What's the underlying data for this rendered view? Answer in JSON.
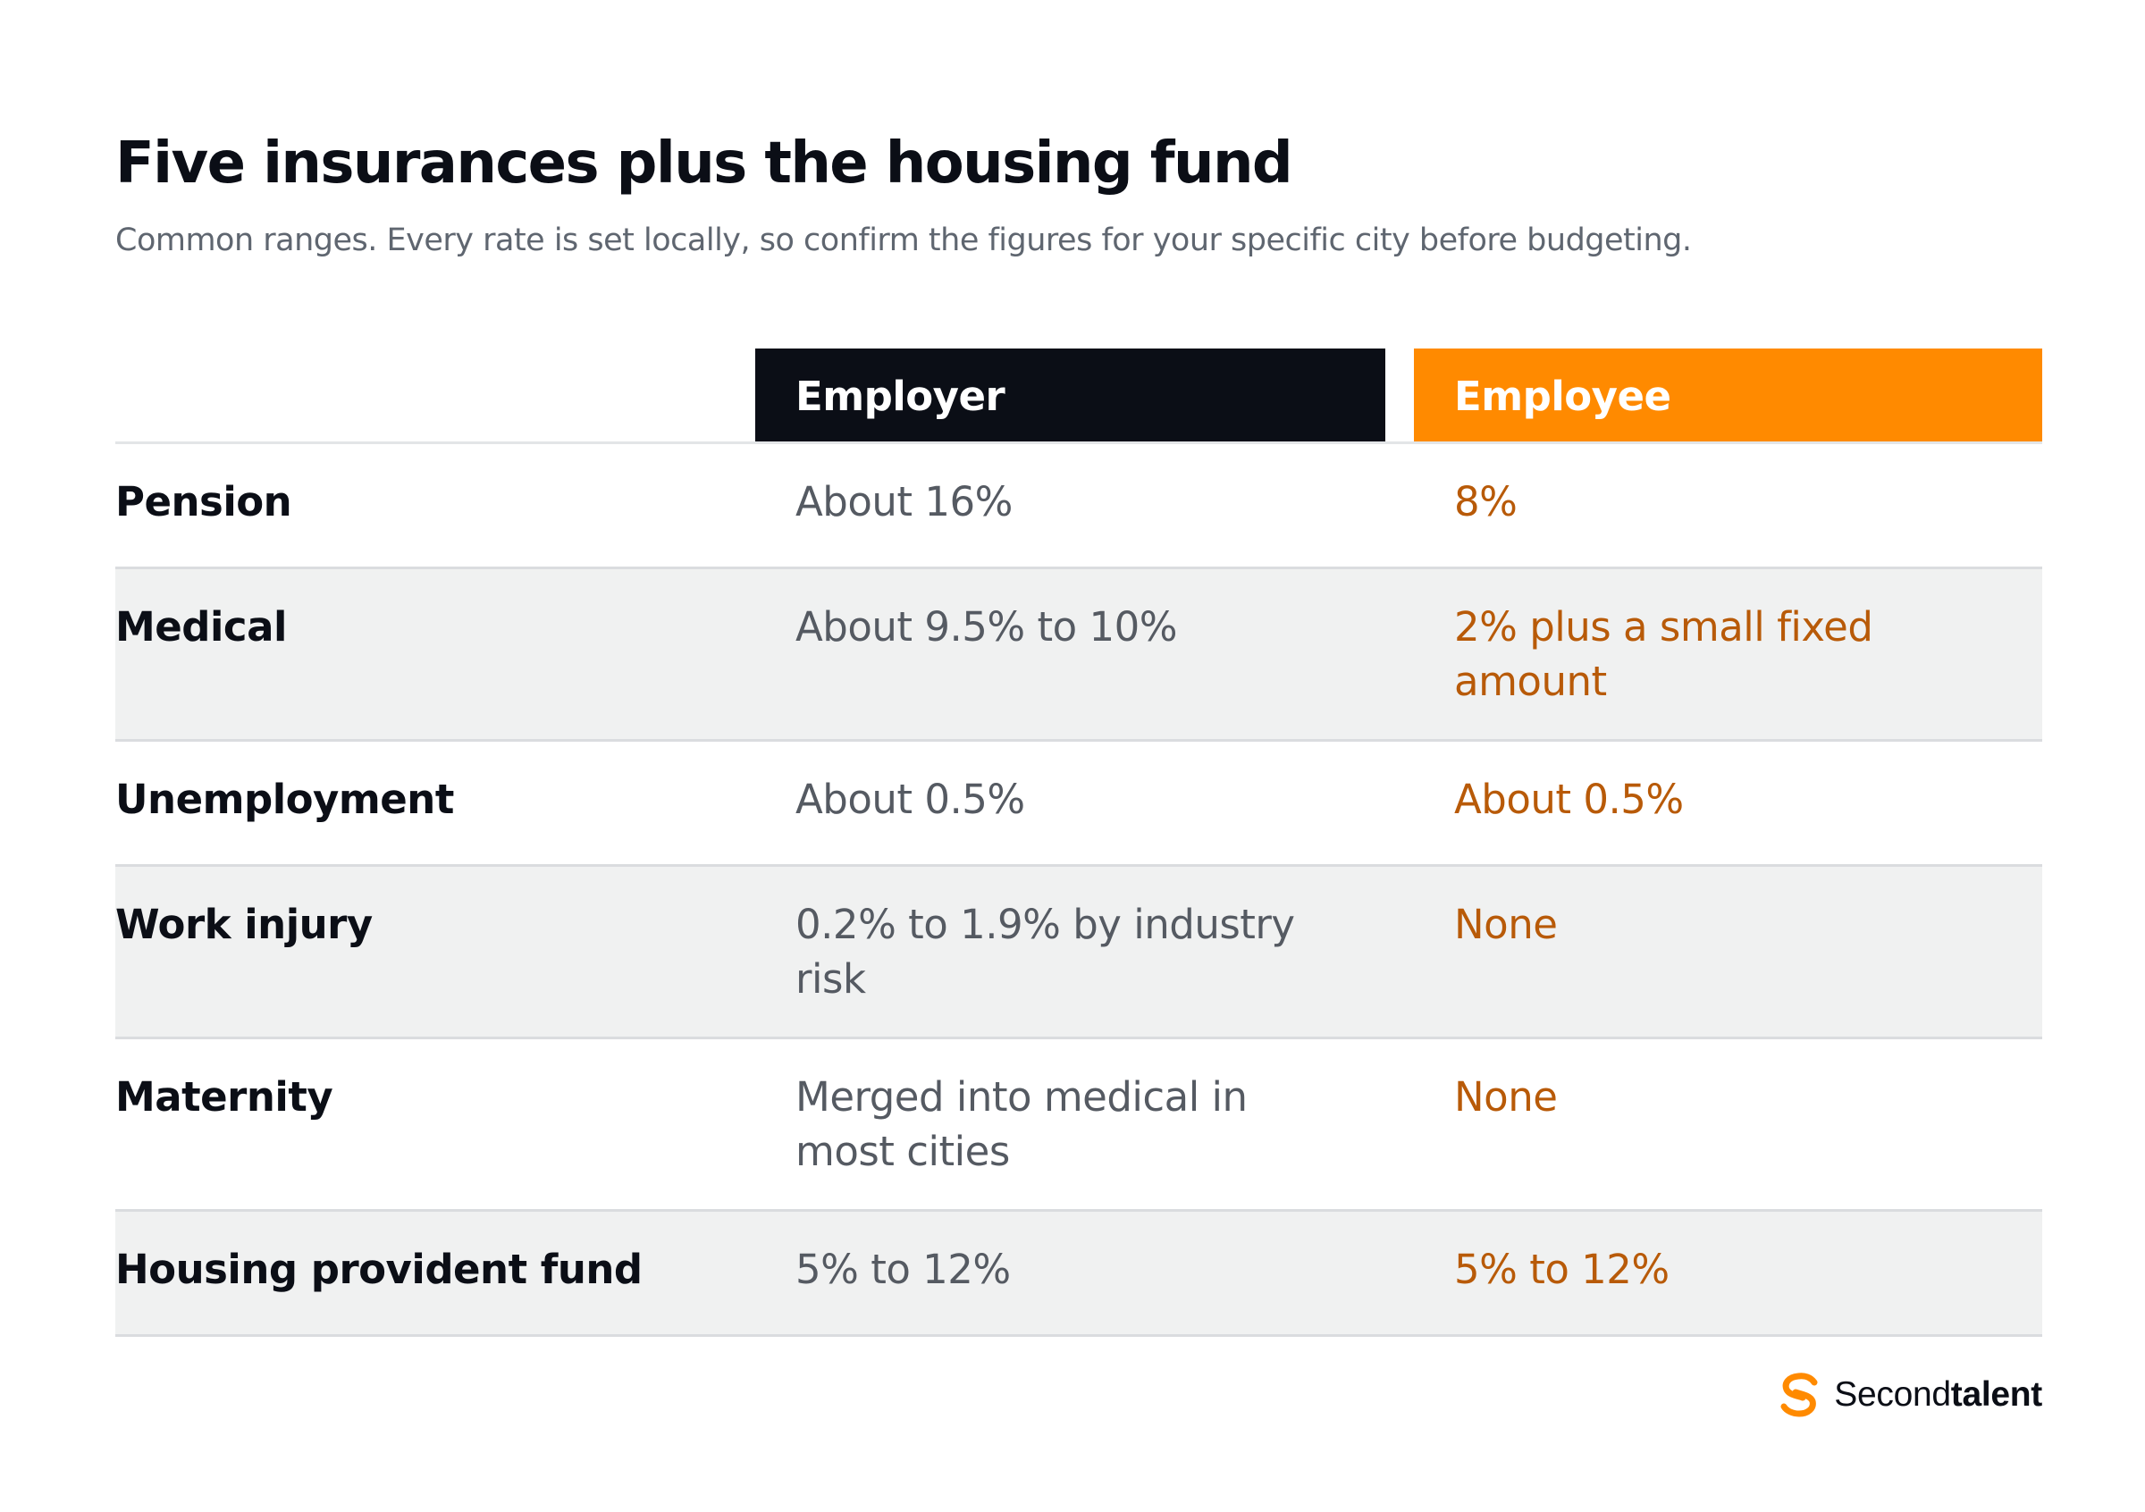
{
  "title": "Five insurances plus the housing fund",
  "subtitle": "Common ranges. Every rate is set locally, so confirm the figures for your specific city before budgeting.",
  "table": {
    "columns": {
      "employer": "Employer",
      "employee": "Employee"
    },
    "rows": [
      {
        "label": "Pension",
        "employer": "About 16%",
        "employee": "8%"
      },
      {
        "label": "Medical",
        "employer": "About 9.5% to 10%",
        "employee": "2% plus a small fixed amount"
      },
      {
        "label": "Unemployment",
        "employer": "About 0.5%",
        "employee": "About 0.5%"
      },
      {
        "label": "Work injury",
        "employer": "0.2% to 1.9% by industry risk",
        "employee": "None"
      },
      {
        "label": "Maternity",
        "employer": "Merged into medical in most cities",
        "employee": "None"
      },
      {
        "label": "Housing provident fund",
        "employer": "5% to 12%",
        "employee": "5% to 12%"
      }
    ]
  },
  "brand": {
    "name_regular": "Second",
    "name_bold": "talent",
    "icon": "secondtalent-logo-icon"
  },
  "colors": {
    "ink": "#0b0e16",
    "accent": "#ff8a00",
    "employee_text": "#b85a08",
    "employer_text": "#555a62",
    "row_stripe": "#f0f1f1"
  }
}
